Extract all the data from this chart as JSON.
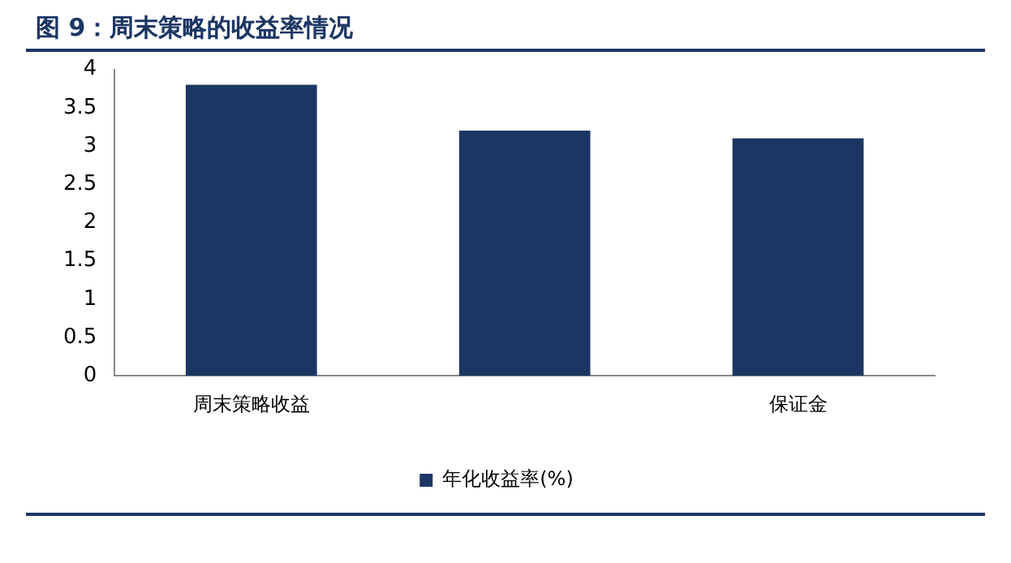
{
  "chart_data": {
    "type": "bar",
    "title": "图 9：周末策略的收益率情况",
    "categories": [
      "周末策略收益",
      null,
      "保证金"
    ],
    "series": [
      {
        "name": "年化收益率(%)",
        "color": "#1c3664",
        "values": [
          3.8,
          3.2,
          3.1
        ]
      }
    ],
    "ylim": [
      0,
      4
    ],
    "yticks": [
      0,
      0.5,
      1,
      1.5,
      2,
      2.5,
      3,
      3.5,
      4
    ],
    "grid": false,
    "legend": "bottom"
  }
}
